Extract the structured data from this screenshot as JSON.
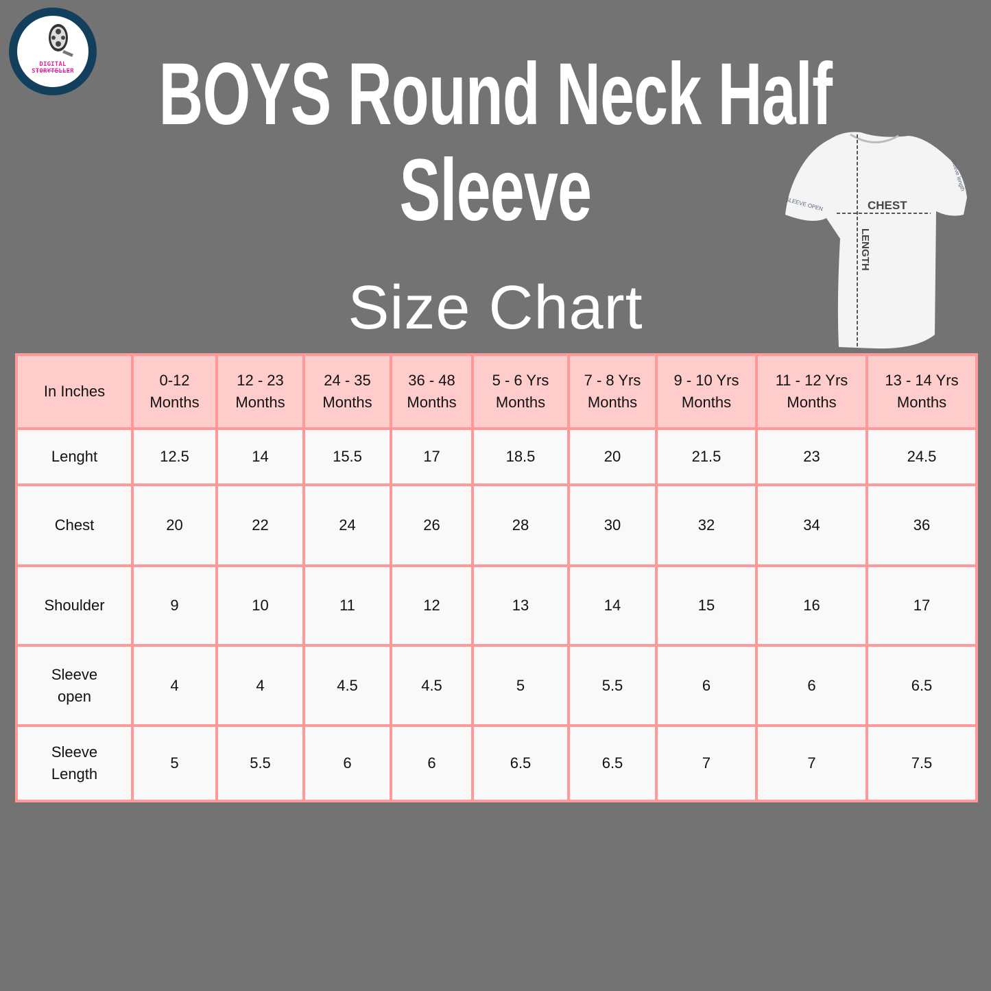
{
  "logo": {
    "text": "DIGITAL STORYTELLER"
  },
  "title": {
    "line1": "BOYS Round Neck Half",
    "line2": "Sleeve"
  },
  "subtitle": "Size Chart",
  "diagram": {
    "chest": "CHEST",
    "length": "LENGTH",
    "sleeve_open": "SLEEVE OPEN",
    "sleeve_length": "Sleeve length"
  },
  "colors": {
    "background": "#737373",
    "header_fill": "#ffcccc",
    "cell_fill": "#f9f9f9",
    "border": "#ff9999",
    "logo_ring": "#123f5c",
    "logo_text": "#e0259a"
  },
  "table": {
    "headers": [
      "In Inches",
      "0-12\nMonths",
      "12 - 23\nMonths",
      "24 - 35\nMonths",
      "36 - 48\nMonths",
      "5 - 6 Yrs\nMonths",
      "7 - 8 Yrs\nMonths",
      "9 - 10 Yrs\nMonths",
      "11 - 12  Yrs\nMonths",
      "13 - 14 Yrs\nMonths"
    ],
    "rows": [
      {
        "label": "Lenght",
        "values": [
          "12.5",
          "14",
          "15.5",
          "17",
          "18.5",
          "20",
          "21.5",
          "23",
          "24.5"
        ]
      },
      {
        "label": "Chest",
        "values": [
          "20",
          "22",
          "24",
          "26",
          "28",
          "30",
          "32",
          "34",
          "36"
        ]
      },
      {
        "label": "Shoulder",
        "values": [
          "9",
          "10",
          "11",
          "12",
          "13",
          "14",
          "15",
          "16",
          "17"
        ]
      },
      {
        "label": "Sleeve\nopen",
        "values": [
          "4",
          "4",
          "4.5",
          "4.5",
          "5",
          "5.5",
          "6",
          "6",
          "6.5"
        ]
      },
      {
        "label": "Sleeve\nLength",
        "values": [
          "5",
          "5.5",
          "6",
          "6",
          "6.5",
          "6.5",
          "7",
          "7",
          "7.5"
        ]
      }
    ]
  }
}
